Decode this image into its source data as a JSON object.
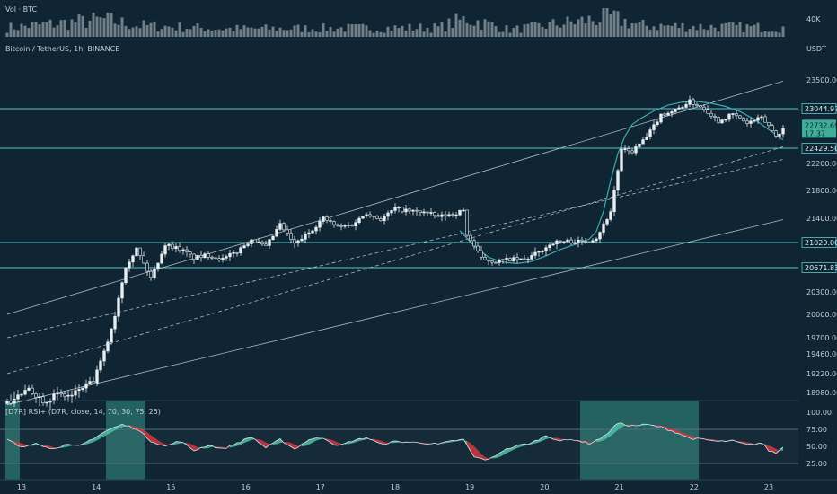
{
  "overlays": {
    "vol_title": "Vol · BTC",
    "vol_axis_label": "40K",
    "main_title": "Bitcoin / TetherUS, 1h, BINANCE",
    "currency": "USDT",
    "rsi_title": "[D7R] RSI+ (D7R, close, 14, 70, 30, 75, 25)"
  },
  "price_axis": {
    "ticks": [
      "23500.00",
      "22200.00",
      "21800.00",
      "21400.00",
      "20300.00",
      "20000.00",
      "19700.00",
      "19460.00",
      "19220.00",
      "18980.00"
    ]
  },
  "price_tags": {
    "resistance": "23044.97",
    "last_price": "22732.69",
    "countdown": "17:37",
    "level_1": "22429.50",
    "level_2": "21029.00",
    "level_3": "20671.83"
  },
  "rsi_axis": {
    "ticks": [
      "100.00",
      "75.00",
      "50.00",
      "25.00"
    ]
  },
  "time_axis": {
    "labels": [
      "13",
      "14",
      "15",
      "16",
      "17",
      "18",
      "19",
      "20",
      "21",
      "22",
      "23"
    ]
  },
  "colors": {
    "background": "#0f2533",
    "up_candle": "#e8eef2",
    "down_candle": "#0f2533",
    "level_line": "#5fc4d0",
    "channel_line": "#c9d3da",
    "curve": "#3fa8b0",
    "rsi_bull": "#4dbfa4",
    "rsi_bear": "#d0393e",
    "rsi_highlight": "#3fae98"
  },
  "chart_data": {
    "type": "candlestick",
    "symbol": "Bitcoin / TetherUS",
    "interval": "1h",
    "exchange": "BINANCE",
    "x_dates": [
      "13",
      "14",
      "15",
      "16",
      "17",
      "18",
      "19",
      "20",
      "21",
      "22",
      "23"
    ],
    "ylim": [
      18900,
      23600
    ],
    "horizontal_levels": [
      23044.97,
      22429.5,
      21029.0,
      20671.83
    ],
    "last_price": 22732.69,
    "close_anchors": [
      [
        0,
        18890
      ],
      [
        6,
        19010
      ],
      [
        10,
        18920
      ],
      [
        14,
        18960
      ],
      [
        18,
        18950
      ],
      [
        20,
        19020
      ],
      [
        24,
        19120
      ],
      [
        27,
        19480
      ],
      [
        30,
        19990
      ],
      [
        33,
        20700
      ],
      [
        36,
        20940
      ],
      [
        40,
        20520
      ],
      [
        44,
        21000
      ],
      [
        48,
        20940
      ],
      [
        52,
        20810
      ],
      [
        56,
        20850
      ],
      [
        60,
        20790
      ],
      [
        64,
        20900
      ],
      [
        68,
        21080
      ],
      [
        72,
        20960
      ],
      [
        76,
        21300
      ],
      [
        80,
        21000
      ],
      [
        84,
        21180
      ],
      [
        88,
        21400
      ],
      [
        92,
        21270
      ],
      [
        96,
        21300
      ],
      [
        100,
        21480
      ],
      [
        104,
        21380
      ],
      [
        108,
        21540
      ],
      [
        112,
        21500
      ],
      [
        116,
        21490
      ],
      [
        120,
        21420
      ],
      [
        124,
        21460
      ],
      [
        127,
        21510
      ],
      [
        128,
        21150
      ],
      [
        132,
        20800
      ],
      [
        136,
        20760
      ],
      [
        140,
        20790
      ],
      [
        144,
        20780
      ],
      [
        148,
        20890
      ],
      [
        152,
        21030
      ],
      [
        156,
        21050
      ],
      [
        160,
        21040
      ],
      [
        164,
        21100
      ],
      [
        168,
        21500
      ],
      [
        171,
        22400
      ],
      [
        174,
        22380
      ],
      [
        178,
        22600
      ],
      [
        182,
        22950
      ],
      [
        186,
        23020
      ],
      [
        190,
        23160
      ],
      [
        194,
        23050
      ],
      [
        198,
        22850
      ],
      [
        202,
        22960
      ],
      [
        206,
        22820
      ],
      [
        210,
        22900
      ],
      [
        212,
        22780
      ],
      [
        214,
        22620
      ],
      [
        216,
        22732
      ]
    ],
    "volume_level": [
      [
        0,
        0.4
      ],
      [
        27,
        0.75
      ],
      [
        36,
        0.5
      ],
      [
        60,
        0.35
      ],
      [
        120,
        0.4
      ],
      [
        128,
        0.8
      ],
      [
        140,
        0.3
      ],
      [
        168,
        0.85
      ],
      [
        176,
        0.5
      ],
      [
        190,
        0.45
      ],
      [
        216,
        0.4
      ]
    ],
    "rsi": {
      "overbought": 75,
      "oversold": 25,
      "anchors": [
        [
          0,
          60
        ],
        [
          4,
          48
        ],
        [
          8,
          56
        ],
        [
          12,
          46
        ],
        [
          16,
          52
        ],
        [
          20,
          50
        ],
        [
          24,
          62
        ],
        [
          28,
          74
        ],
        [
          32,
          82
        ],
        [
          36,
          76
        ],
        [
          40,
          58
        ],
        [
          44,
          50
        ],
        [
          48,
          58
        ],
        [
          52,
          44
        ],
        [
          56,
          52
        ],
        [
          60,
          46
        ],
        [
          64,
          55
        ],
        [
          68,
          64
        ],
        [
          72,
          48
        ],
        [
          76,
          60
        ],
        [
          80,
          46
        ],
        [
          84,
          60
        ],
        [
          88,
          63
        ],
        [
          92,
          50
        ],
        [
          96,
          58
        ],
        [
          100,
          63
        ],
        [
          104,
          53
        ],
        [
          108,
          57
        ],
        [
          112,
          56
        ],
        [
          116,
          55
        ],
        [
          120,
          53
        ],
        [
          124,
          58
        ],
        [
          127,
          60
        ],
        [
          130,
          34
        ],
        [
          134,
          30
        ],
        [
          138,
          44
        ],
        [
          142,
          51
        ],
        [
          146,
          55
        ],
        [
          150,
          66
        ],
        [
          154,
          58
        ],
        [
          158,
          60
        ],
        [
          162,
          54
        ],
        [
          166,
          64
        ],
        [
          170,
          84
        ],
        [
          174,
          80
        ],
        [
          178,
          82
        ],
        [
          182,
          78
        ],
        [
          186,
          71
        ],
        [
          190,
          62
        ],
        [
          194,
          60
        ],
        [
          198,
          57
        ],
        [
          202,
          58
        ],
        [
          206,
          52
        ],
        [
          210,
          55
        ],
        [
          212,
          44
        ],
        [
          214,
          40
        ],
        [
          216,
          49
        ]
      ],
      "highlight_bars": [
        [
          0,
          3
        ],
        [
          28,
          38
        ],
        [
          160,
          192
        ]
      ]
    }
  }
}
